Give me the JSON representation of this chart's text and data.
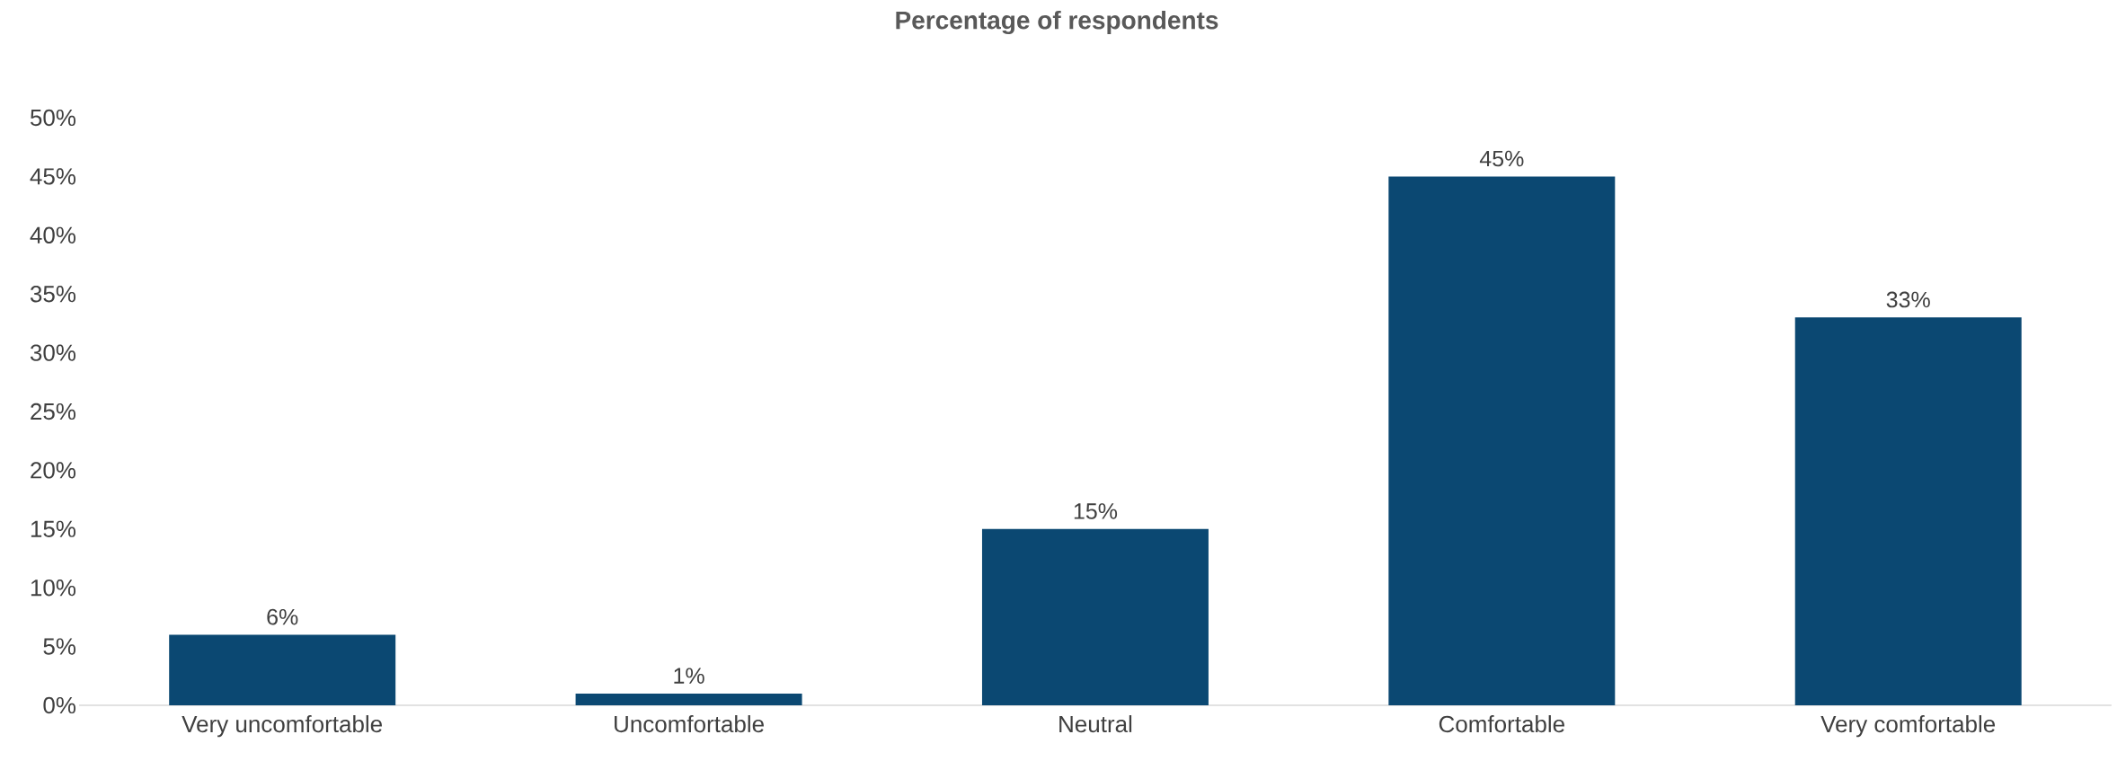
{
  "chart_data": {
    "type": "bar",
    "title": "Percentage of respondents",
    "categories": [
      "Very uncomfortable",
      "Uncomfortable",
      "Neutral",
      "Comfortable",
      "Very comfortable"
    ],
    "values": [
      6,
      1,
      15,
      45,
      33
    ],
    "value_labels": [
      "6%",
      "1%",
      "15%",
      "45%",
      "33%"
    ],
    "color": "#0b4872",
    "ylim": [
      0,
      50
    ],
    "yticks": [
      {
        "value": 0,
        "label": "0%"
      },
      {
        "value": 5,
        "label": "5%"
      },
      {
        "value": 10,
        "label": "10%"
      },
      {
        "value": 15,
        "label": "15%"
      },
      {
        "value": 20,
        "label": "20%"
      },
      {
        "value": 25,
        "label": "25%"
      },
      {
        "value": 30,
        "label": "30%"
      },
      {
        "value": 35,
        "label": "35%"
      },
      {
        "value": 40,
        "label": "40%"
      },
      {
        "value": 45,
        "label": "45%"
      },
      {
        "value": 50,
        "label": "50%"
      }
    ],
    "grid": false
  }
}
